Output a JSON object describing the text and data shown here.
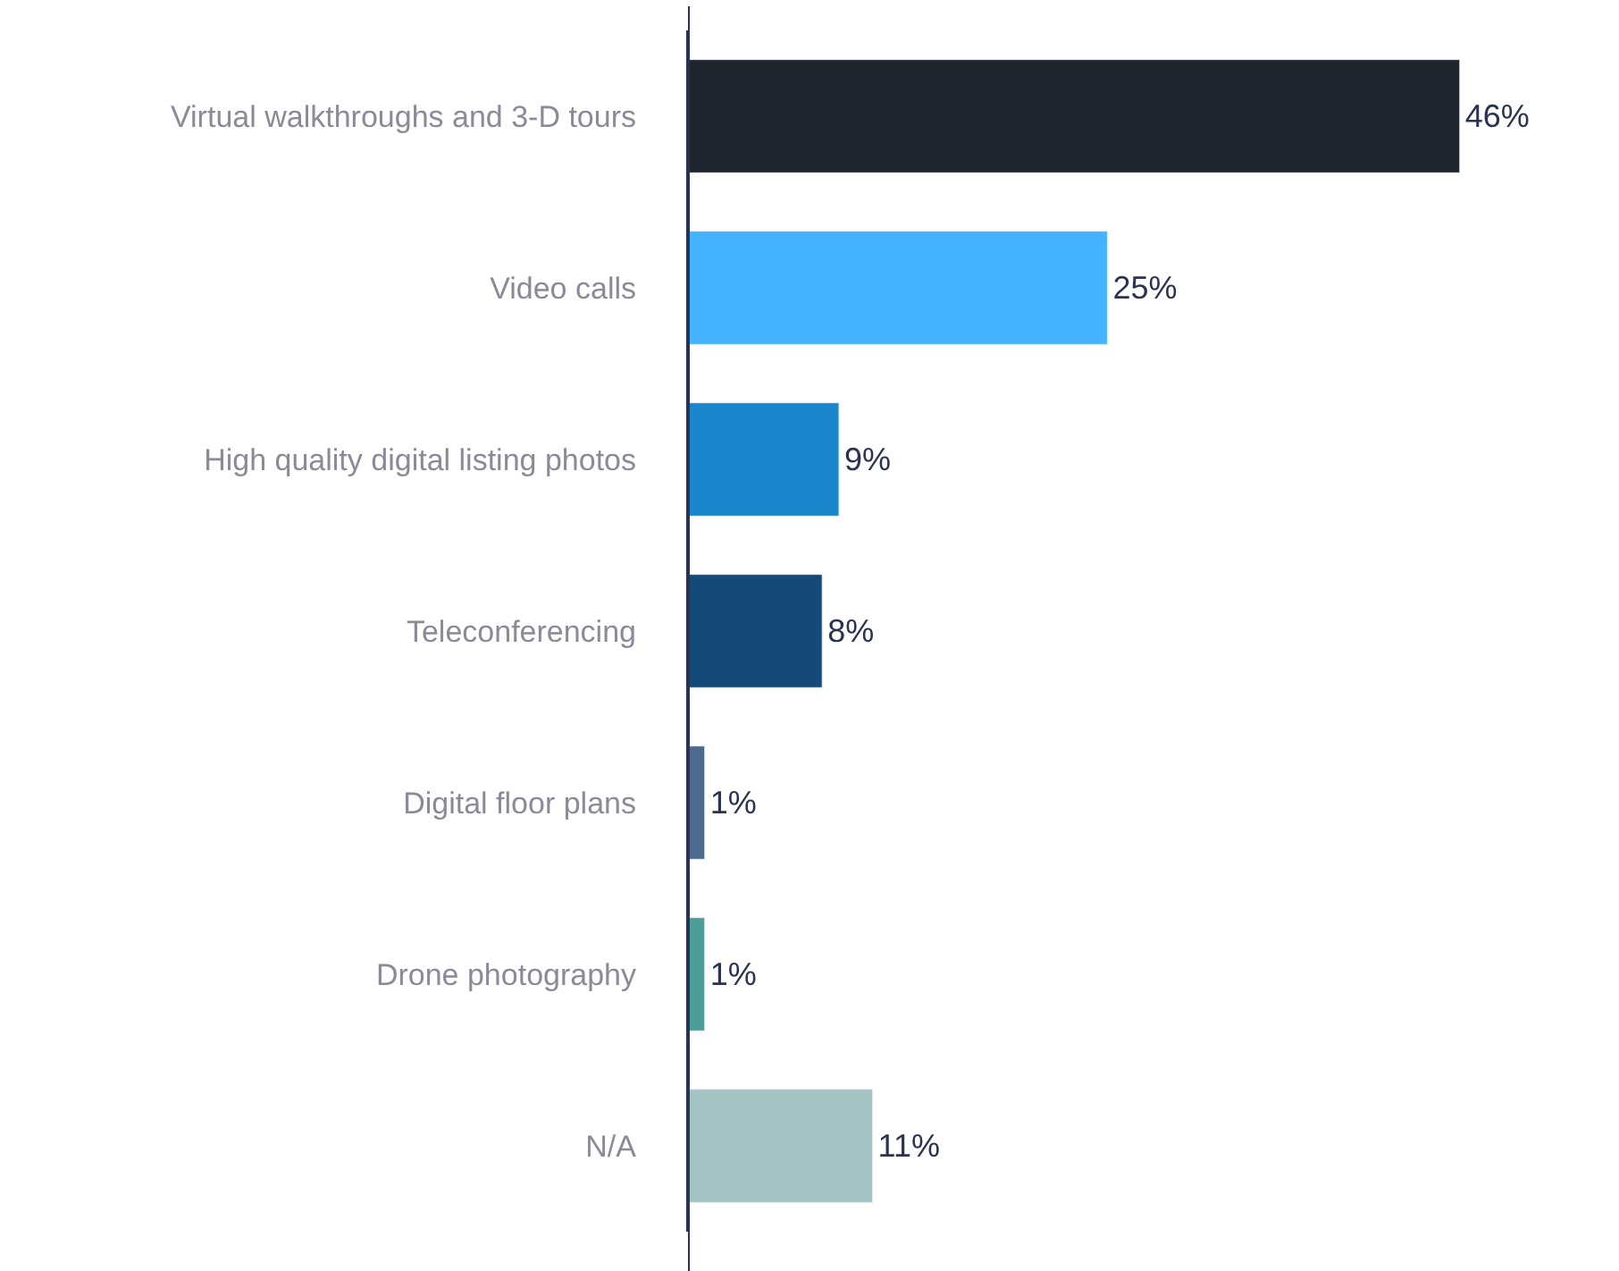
{
  "chart_data": {
    "type": "bar",
    "orientation": "horizontal",
    "data_labels": true,
    "legend": false,
    "categories": [
      "Virtual walkthroughs and 3-D tours",
      "Video calls",
      "High quality digital listing photos",
      "Teleconferencing",
      "Digital floor plans",
      "Drone photography",
      "N/A"
    ],
    "values": [
      46,
      25,
      9,
      8,
      1,
      1,
      11
    ],
    "value_labels": [
      "46%",
      "25%",
      "9%",
      "8%",
      "1%",
      "1%",
      "11%"
    ],
    "colors": [
      "#20262d",
      "#45b3ff",
      "#1a86cc",
      "#154a78",
      "#4d6a8e",
      "#4b9e95",
      "#a5c4c4"
    ]
  }
}
